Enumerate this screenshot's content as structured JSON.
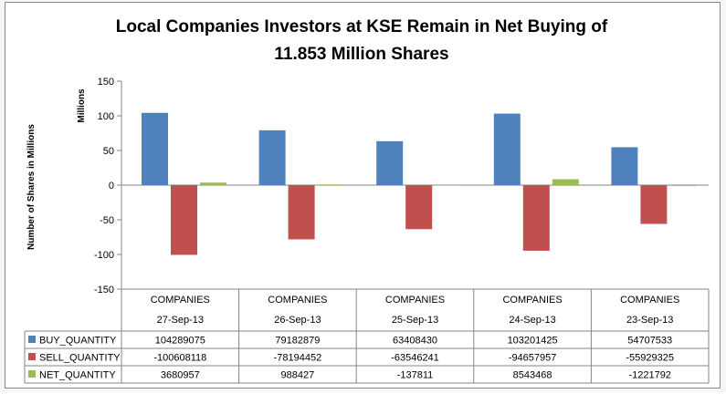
{
  "chart_data": {
    "type": "bar",
    "title_line1": "Local Companies Investors at KSE Remain in Net Buying of",
    "title_line2": "11.853 Million Shares",
    "ylabel": "Number of Shares in Millions",
    "yunit_label": "Millions",
    "ylim": [
      -150,
      150
    ],
    "yticks": [
      "150",
      "100",
      "50",
      "0",
      "-50",
      "-100",
      "-150"
    ],
    "ytick_values": [
      150,
      100,
      50,
      0,
      -50,
      -100,
      -150
    ],
    "grid": false,
    "legend": "table-left",
    "categories": [
      {
        "group": "COMPANIES",
        "date": "27-Sep-13"
      },
      {
        "group": "COMPANIES",
        "date": "26-Sep-13"
      },
      {
        "group": "COMPANIES",
        "date": "25-Sep-13"
      },
      {
        "group": "COMPANIES",
        "date": "24-Sep-13"
      },
      {
        "group": "COMPANIES",
        "date": "23-Sep-13"
      }
    ],
    "series": [
      {
        "name": "BUY_QUANTITY",
        "color": "#4f81bd",
        "values": [
          104289075,
          79182879,
          63408430,
          103201425,
          54707533
        ],
        "labels": [
          "104289075",
          "79182879",
          "63408430",
          "103201425",
          "54707533"
        ]
      },
      {
        "name": "SELL_QUANTITY",
        "color": "#c0504d",
        "values": [
          -100608118,
          -78194452,
          -63546241,
          -94657957,
          -55929325
        ],
        "labels": [
          "-100608118",
          "-78194452",
          "-63546241",
          "-94657957",
          "-55929325"
        ]
      },
      {
        "name": "NET_QUANTITY",
        "color": "#9bbb59",
        "values": [
          3680957,
          988427,
          -137811,
          8543468,
          -1221792
        ],
        "labels": [
          "3680957",
          "988427",
          "-137811",
          "8543468",
          "-1221792"
        ]
      }
    ]
  }
}
